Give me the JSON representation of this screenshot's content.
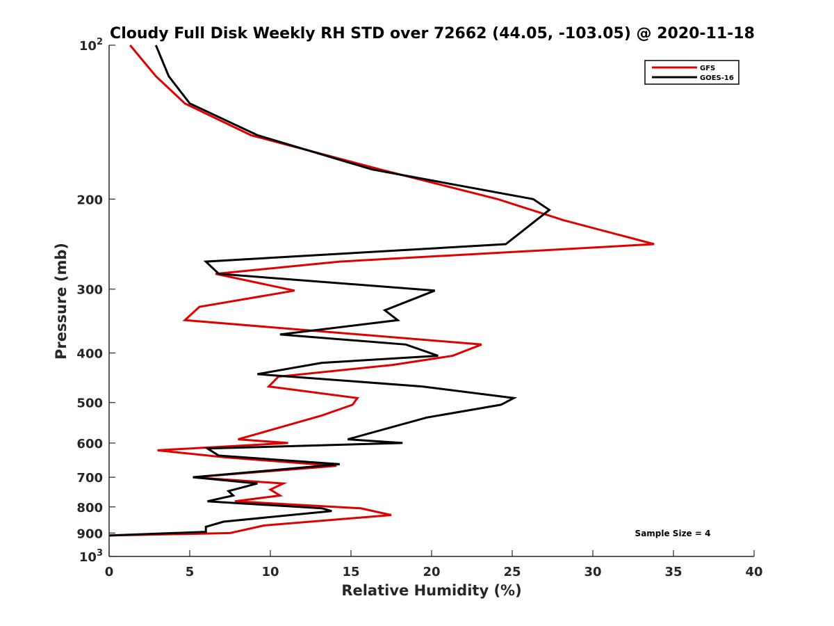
{
  "chart_data": {
    "type": "line",
    "title": "Cloudy Full Disk Weekly RH STD over 72662 (44.05, -103.05) @ 2020-11-18",
    "xlabel": "Relative Humidity (%)",
    "ylabel": "Pressure (mb)",
    "xlim": [
      0,
      40
    ],
    "ylim": [
      100,
      1000
    ],
    "yscale": "log",
    "y_reversed": true,
    "x_ticks": [
      0,
      5,
      10,
      15,
      20,
      25,
      30,
      35,
      40
    ],
    "x_tick_labels": [
      "0",
      "5",
      "10",
      "15",
      "20",
      "25",
      "30",
      "35",
      "40"
    ],
    "y_ticks": [
      100,
      200,
      300,
      400,
      500,
      600,
      700,
      800,
      900,
      1000
    ],
    "y_tick_labels": [
      {
        "base": "10",
        "exp": "2"
      },
      {
        "base": "200",
        "exp": ""
      },
      {
        "base": "300",
        "exp": ""
      },
      {
        "base": "400",
        "exp": ""
      },
      {
        "base": "500",
        "exp": ""
      },
      {
        "base": "600",
        "exp": ""
      },
      {
        "base": "700",
        "exp": ""
      },
      {
        "base": "800",
        "exp": ""
      },
      {
        "base": "900",
        "exp": ""
      },
      {
        "base": "10",
        "exp": "3"
      }
    ],
    "grid": false,
    "legend_position": "top-right",
    "annotation": "Sample Size = 4",
    "series": [
      {
        "name": "GFS",
        "color": "#e00000",
        "points": [
          [
            1.3,
            100
          ],
          [
            2.9,
            115
          ],
          [
            4.7,
            130
          ],
          [
            8.8,
            150
          ],
          [
            16.8,
            175
          ],
          [
            24.1,
            200
          ],
          [
            28.2,
            220
          ],
          [
            33.8,
            245
          ],
          [
            14.3,
            265
          ],
          [
            6.6,
            280
          ],
          [
            11.5,
            302
          ],
          [
            5.6,
            325
          ],
          [
            4.7,
            345
          ],
          [
            23.1,
            385
          ],
          [
            21.3,
            405
          ],
          [
            17.6,
            422
          ],
          [
            10.5,
            445
          ],
          [
            9.9,
            465
          ],
          [
            15.4,
            490
          ],
          [
            15.1,
            505
          ],
          [
            13.2,
            530
          ],
          [
            8.0,
            590
          ],
          [
            11.1,
            600
          ],
          [
            3.0,
            620
          ],
          [
            7.2,
            640
          ],
          [
            14.1,
            665
          ],
          [
            5.2,
            700
          ],
          [
            10.8,
            720
          ],
          [
            10.0,
            740
          ],
          [
            10.6,
            760
          ],
          [
            7.8,
            780
          ],
          [
            15.6,
            805
          ],
          [
            17.5,
            830
          ],
          [
            9.6,
            870
          ],
          [
            7.5,
            900
          ],
          [
            0,
            910
          ]
        ]
      },
      {
        "name": "GOES-16",
        "color": "#000000",
        "points": [
          [
            2.9,
            100
          ],
          [
            3.7,
            115
          ],
          [
            5.0,
            130
          ],
          [
            9.2,
            150
          ],
          [
            16.3,
            175
          ],
          [
            26.3,
            200
          ],
          [
            27.3,
            210
          ],
          [
            24.6,
            245
          ],
          [
            6.0,
            265
          ],
          [
            6.8,
            280
          ],
          [
            20.2,
            302
          ],
          [
            17.1,
            330
          ],
          [
            17.9,
            345
          ],
          [
            10.6,
            368
          ],
          [
            18.4,
            385
          ],
          [
            20.4,
            405
          ],
          [
            13.2,
            418
          ],
          [
            9.2,
            440
          ],
          [
            19.4,
            465
          ],
          [
            25.1,
            490
          ],
          [
            24.3,
            505
          ],
          [
            19.7,
            535
          ],
          [
            17.4,
            560
          ],
          [
            14.8,
            590
          ],
          [
            18.2,
            600
          ],
          [
            6.1,
            615
          ],
          [
            6.8,
            635
          ],
          [
            14.3,
            660
          ],
          [
            5.2,
            700
          ],
          [
            9.2,
            720
          ],
          [
            7.4,
            745
          ],
          [
            7.7,
            760
          ],
          [
            6.1,
            780
          ],
          [
            13.2,
            805
          ],
          [
            13.8,
            815
          ],
          [
            7.1,
            855
          ],
          [
            6.0,
            875
          ],
          [
            6.0,
            895
          ],
          [
            0,
            910
          ]
        ]
      }
    ]
  }
}
